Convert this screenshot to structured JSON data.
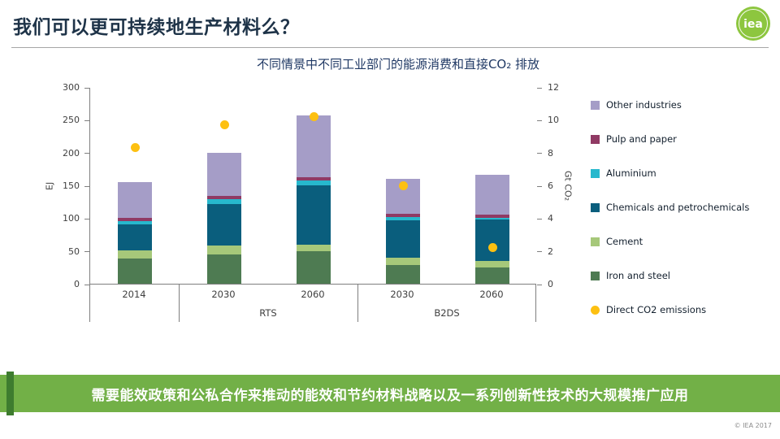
{
  "slide": {
    "title": "我们可以更可持续地生产材料么？",
    "banner": "需要能效政策和公私合作来推动的能效和节约材料战略以及一系列创新性技术的大规模推广应用",
    "copyright": "© IEA 2017",
    "logo_text": "iea",
    "banner_color": "#72b047",
    "banner_accent_color": "#3e7c2f"
  },
  "chart_data": {
    "type": "bar",
    "stacked": true,
    "title": "不同情景中不同工业部门的能源消费和直接CO₂ 排放",
    "categories": [
      "2014",
      "2030",
      "2060",
      "2030",
      "2060"
    ],
    "groups": [
      {
        "label": "",
        "span": 1
      },
      {
        "label": "RTS",
        "span": 2
      },
      {
        "label": "B2DS",
        "span": 2
      }
    ],
    "series": [
      {
        "name": "Iron and steel",
        "color": "#4e7b52",
        "values": [
          38,
          45,
          50,
          28,
          25
        ]
      },
      {
        "name": "Cement",
        "color": "#a6c87a",
        "values": [
          13,
          13,
          10,
          12,
          10
        ]
      },
      {
        "name": "Chemicals and petrochemicals",
        "color": "#0a5e7d",
        "values": [
          40,
          64,
          90,
          57,
          63
        ]
      },
      {
        "name": "Aluminium",
        "color": "#27b8cd",
        "values": [
          4,
          7,
          7,
          5,
          3
        ]
      },
      {
        "name": "Pulp and paper",
        "color": "#903a64",
        "values": [
          6,
          5,
          5,
          5,
          5
        ]
      },
      {
        "name": "Other industries",
        "color": "#a59dc7",
        "values": [
          54,
          66,
          95,
          53,
          60
        ]
      }
    ],
    "dot_series": {
      "name": "Direct CO2 emissions",
      "color": "#fdc011",
      "axis": "right",
      "values": [
        8.3,
        9.7,
        10.2,
        6.0,
        2.2
      ]
    },
    "left_axis": {
      "label": "EJ",
      "min": 0,
      "max": 300,
      "step": 50
    },
    "right_axis": {
      "label": "Gt CO₂",
      "min": 0,
      "max": 12,
      "step": 2
    },
    "legend": [
      {
        "label": "Other industries",
        "color": "#a59dc7",
        "shape": "square"
      },
      {
        "label": "Pulp and paper",
        "color": "#903a64",
        "shape": "square"
      },
      {
        "label": "Aluminium",
        "color": "#27b8cd",
        "shape": "square"
      },
      {
        "label": "Chemicals and petrochemicals",
        "color": "#0a5e7d",
        "shape": "square"
      },
      {
        "label": "Cement",
        "color": "#a6c87a",
        "shape": "square"
      },
      {
        "label": "Iron and steel",
        "color": "#4e7b52",
        "shape": "square"
      },
      {
        "label": "Direct CO2 emissions",
        "color": "#fdc011",
        "shape": "circle"
      }
    ]
  }
}
